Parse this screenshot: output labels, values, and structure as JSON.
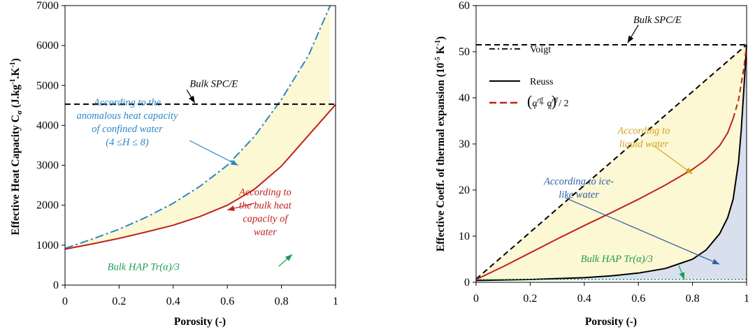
{
  "chart_data": [
    {
      "type": "line",
      "xlabel": "Porosity (-)",
      "ylabel_prefix": "Effective Heat Capacity C",
      "ylabel_sub": "σ",
      "ylabel_unit_a": " (J.kg",
      "ylabel_sup1": "-1",
      "ylabel_unit_b": ".K",
      "ylabel_sup2": "-1",
      "ylabel_unit_c": ")",
      "xlim": [
        0,
        1
      ],
      "ylim": [
        0,
        7000
      ],
      "x_ticks": [
        "0",
        "0.2",
        "0.4",
        "0.6",
        "0.8",
        "1"
      ],
      "y_ticks": [
        "0",
        "1000",
        "2000",
        "3000",
        "4000",
        "5000",
        "6000",
        "7000"
      ],
      "grid": false,
      "shaded_region": {
        "between": [
          "anomalous",
          "bulk"
        ],
        "color": "#fdf8d4"
      },
      "series": [
        {
          "key": "anomalous",
          "color": "#2b88c8",
          "style": "dash-dot",
          "x": [
            0,
            0.1,
            0.2,
            0.3,
            0.4,
            0.5,
            0.6,
            0.7,
            0.8,
            0.9,
            0.98
          ],
          "y": [
            920,
            1150,
            1400,
            1700,
            2050,
            2480,
            3000,
            3720,
            4650,
            5750,
            7000
          ]
        },
        {
          "key": "bulk",
          "color": "#c0211f",
          "style": "solid",
          "x": [
            0,
            0.1,
            0.2,
            0.3,
            0.4,
            0.5,
            0.6,
            0.7,
            0.8,
            0.9,
            1.0
          ],
          "y": [
            900,
            1030,
            1170,
            1330,
            1500,
            1720,
            2000,
            2400,
            2980,
            3750,
            4520
          ]
        },
        {
          "key": "bulk_spce",
          "color": "#000000",
          "style": "dashed",
          "x": [
            0,
            1
          ],
          "y": [
            4530,
            4530
          ]
        }
      ],
      "annotations": [
        {
          "text": "Bulk SPC/E",
          "color": "#000000",
          "x": 0.55,
          "y": 4960,
          "arrow_to": [
            0.48,
            4560
          ]
        },
        {
          "lines": [
            "According to the",
            "anomalous heat capacity",
            "of confined water",
            "(4 ≤H ≤ 8)"
          ],
          "color": "#2b88c8",
          "x": 0.23,
          "y": 4500,
          "arrow_from": [
            0.46,
            3620
          ],
          "arrow_to": [
            0.64,
            3000
          ]
        },
        {
          "lines": [
            "According to",
            "the bulk heat",
            "capacity of",
            "water"
          ],
          "color": "#c0211f",
          "x": 0.74,
          "y": 2250,
          "arrow_from": [
            0.7,
            2050
          ],
          "arrow_to": [
            0.6,
            1880
          ]
        },
        {
          "text": "Bulk HAP Tr(α)/3",
          "color": "#1e9c52",
          "x": 0.29,
          "y": 380,
          "arrow_from": [
            0.79,
            470
          ],
          "arrow_to": [
            0.84,
            770
          ]
        }
      ]
    },
    {
      "type": "line",
      "xlabel": "Porosity (-)",
      "ylabel_prefix": "Effective Coeff. of thermal expansion (10",
      "ylabel_sup1": "-5",
      "ylabel_unit_a": " K",
      "ylabel_sup2": "-1",
      "ylabel_unit_b": ")",
      "xlim": [
        0,
        1
      ],
      "ylim": [
        0,
        60
      ],
      "x_ticks": [
        "0",
        "0.2",
        "0.4",
        "0.6",
        "0.8",
        "1"
      ],
      "y_ticks": [
        "0",
        "10",
        "20",
        "30",
        "40",
        "50",
        "60"
      ],
      "grid": false,
      "legend": {
        "position": "top-left",
        "entries": [
          {
            "key": "voigt",
            "label": "Voigt"
          },
          {
            "key": "reuss",
            "label": "Reuss"
          },
          {
            "key": "average",
            "label_alpha": "α",
            "label_sup": "eff",
            "label_sub_v": "V",
            "label_sub_r": "R",
            "label_div": "/ 2"
          }
        ]
      },
      "series": [
        {
          "key": "voigt",
          "color": "#000000",
          "style": "dashed",
          "x": [
            0,
            1
          ],
          "y": [
            0.7,
            51.5
          ]
        },
        {
          "key": "reuss",
          "color": "#000000",
          "style": "solid",
          "x": [
            0,
            0.2,
            0.4,
            0.5,
            0.6,
            0.7,
            0.8,
            0.85,
            0.9,
            0.93,
            0.95,
            0.97,
            0.98,
            0.99,
            1.0
          ],
          "y": [
            0.4,
            0.6,
            1.0,
            1.4,
            2.0,
            3.0,
            5.0,
            7.0,
            10.5,
            14.0,
            18.0,
            26.0,
            33.0,
            42.0,
            51.5
          ]
        },
        {
          "key": "average",
          "color": "#c0211f",
          "style": "solid",
          "x": [
            0,
            0.1,
            0.2,
            0.3,
            0.4,
            0.5,
            0.6,
            0.7,
            0.8,
            0.85,
            0.9,
            0.93,
            0.95
          ],
          "y": [
            0.6,
            3.4,
            6.4,
            9.4,
            12.3,
            15.1,
            18.0,
            21.1,
            24.5,
            26.6,
            29.6,
            32.4,
            35.5
          ]
        },
        {
          "key": "average_dashed",
          "color": "#c0211f",
          "style": "dashed",
          "x": [
            0.95,
            0.97,
            0.99,
            1.0
          ],
          "y": [
            35.5,
            39.5,
            46.5,
            51.5
          ]
        },
        {
          "key": "hap",
          "color": "#1e9c52",
          "style": "dotted",
          "x": [
            0,
            1
          ],
          "y": [
            0.6,
            0.6
          ]
        },
        {
          "key": "bulk_spce",
          "color": "#000000",
          "style": "dashed",
          "x": [
            0,
            1
          ],
          "y": [
            51.5,
            51.5
          ]
        }
      ],
      "shaded_regions": [
        {
          "between": [
            "voigt",
            "reuss"
          ],
          "color": "#fdf8d4"
        },
        {
          "between": [
            "reuss",
            "hap"
          ],
          "color": "#d8e0ee"
        }
      ],
      "annotations": [
        {
          "text": "Bulk SPC/E",
          "color": "#000000",
          "x": 0.67,
          "y": 56.2,
          "arrow_from": [
            0.6,
            55.8
          ],
          "arrow_to": [
            0.56,
            51.9
          ]
        },
        {
          "lines": [
            "According to",
            "liquid water"
          ],
          "color": "#d4a017",
          "x": 0.62,
          "y": 32.2,
          "arrow_from": [
            0.66,
            29.5
          ],
          "arrow_to": [
            0.8,
            23.5
          ]
        },
        {
          "lines": [
            "According to ice-",
            "like water"
          ],
          "color": "#2f5ea6",
          "x": 0.38,
          "y": 21.2,
          "arrow_from": [
            0.33,
            18.3
          ],
          "arrow_to": [
            0.9,
            3.9
          ]
        },
        {
          "text": "Bulk HAP Tr(α)/3",
          "color": "#1e9c52",
          "x": 0.52,
          "y": 4.4,
          "arrow_from": [
            0.75,
            3.6
          ],
          "arrow_to": [
            0.77,
            0.6
          ]
        }
      ]
    }
  ]
}
